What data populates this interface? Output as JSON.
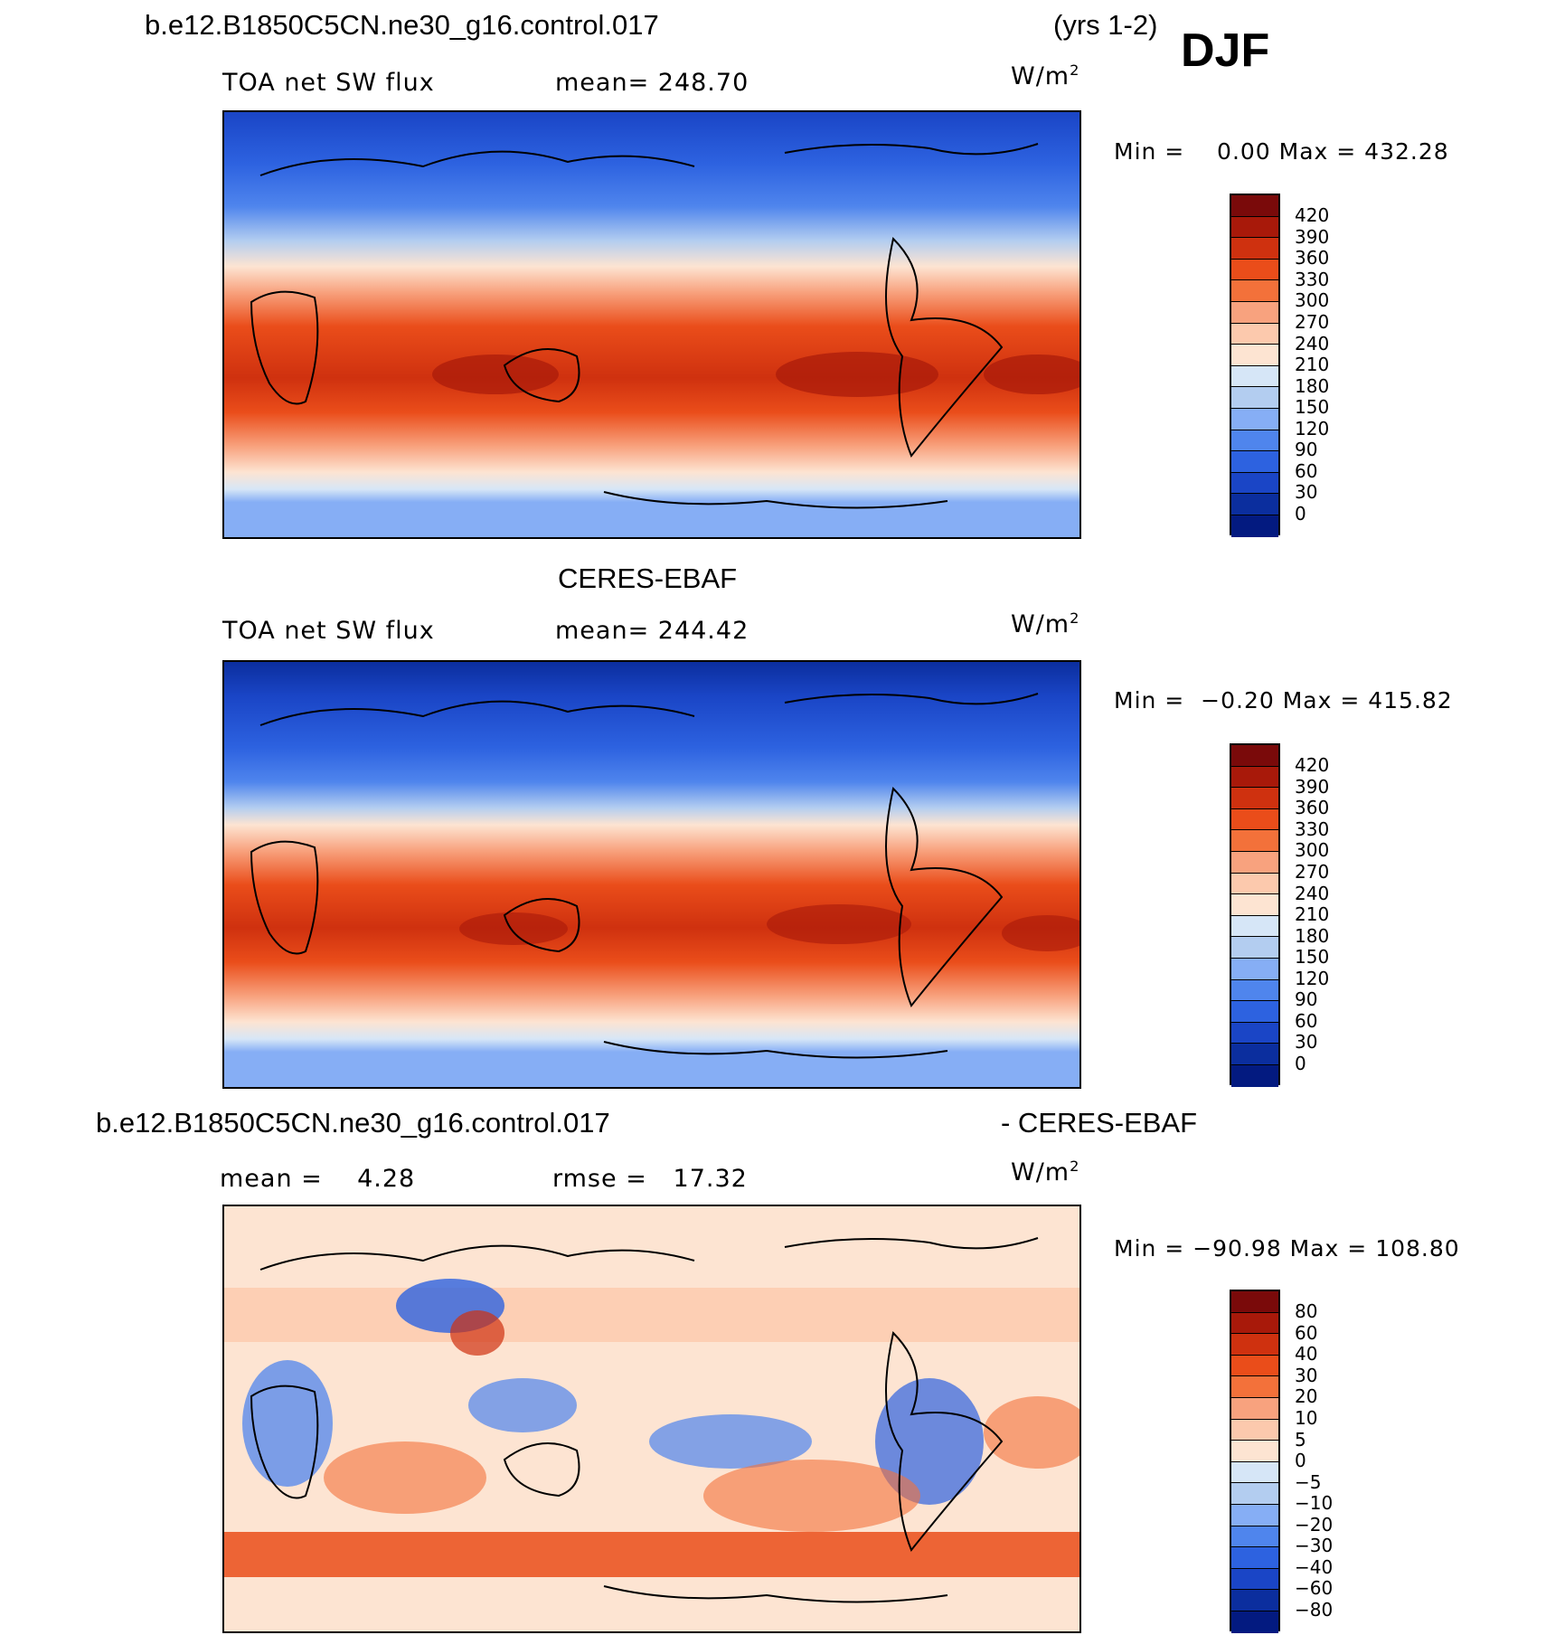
{
  "header": {
    "case_name": "b.e12.B1850C5CN.ne30_g16.control.017",
    "years": "(yrs 1-2)",
    "season": "DJF"
  },
  "panels": [
    {
      "id": "model",
      "top_title": "",
      "variable": "TOA net SW flux",
      "stat_text": "mean= 248.70",
      "units": "W/m",
      "units_exp": "2",
      "minmax": "Min =    0.00 Max = 432.28",
      "colorbar": {
        "colors": [
          "#7a0a0a",
          "#a8190a",
          "#cf310f",
          "#ea4d1a",
          "#f3713a",
          "#f8a27e",
          "#fcc9ad",
          "#fde4d2",
          "#d6e6f7",
          "#b3cdf0",
          "#86aef5",
          "#4f85ed",
          "#2d62e0",
          "#1a45c6",
          "#0b2e9e",
          "#031a80"
        ],
        "labels": [
          "420",
          "390",
          "360",
          "330",
          "300",
          "270",
          "240",
          "210",
          "180",
          "150",
          "120",
          "90",
          "60",
          "30",
          "0"
        ]
      }
    },
    {
      "id": "obs",
      "top_title": "CERES-EBAF",
      "variable": "TOA net SW flux",
      "stat_text": "mean= 244.42",
      "units": "W/m",
      "units_exp": "2",
      "minmax": "Min =  −0.20 Max = 415.82",
      "colorbar": {
        "colors": [
          "#7a0a0a",
          "#a8190a",
          "#cf310f",
          "#ea4d1a",
          "#f3713a",
          "#f8a27e",
          "#fcc9ad",
          "#fde4d2",
          "#d6e6f7",
          "#b3cdf0",
          "#86aef5",
          "#4f85ed",
          "#2d62e0",
          "#1a45c6",
          "#0b2e9e",
          "#031a80"
        ],
        "labels": [
          "420",
          "390",
          "360",
          "330",
          "300",
          "270",
          "240",
          "210",
          "180",
          "150",
          "120",
          "90",
          "60",
          "30",
          "0"
        ]
      }
    },
    {
      "id": "diff",
      "top_title_left": "b.e12.B1850C5CN.ne30_g16.control.017",
      "top_title_right": "- CERES-EBAF",
      "variable": "mean =    4.28",
      "stat_text": "rmse =   17.32",
      "units": "W/m",
      "units_exp": "2",
      "minmax": "Min = −90.98 Max = 108.80",
      "colorbar": {
        "colors": [
          "#7a0a0a",
          "#a8190a",
          "#cf310f",
          "#ea4d1a",
          "#f3713a",
          "#f8a27e",
          "#fcc9ad",
          "#fde4d2",
          "#d6e6f7",
          "#b3cdf0",
          "#86aef5",
          "#4f85ed",
          "#2d62e0",
          "#1a45c6",
          "#0b2e9e",
          "#031a80"
        ],
        "labels": [
          "80",
          "60",
          "40",
          "30",
          "20",
          "10",
          "5",
          "0",
          "−5",
          "−10",
          "−20",
          "−30",
          "−40",
          "−60",
          "−80"
        ]
      }
    }
  ]
}
